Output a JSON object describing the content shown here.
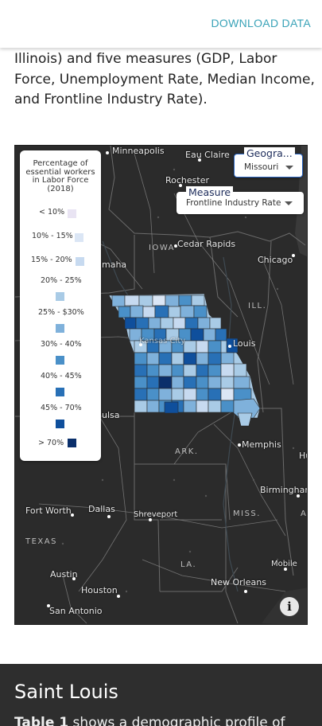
{
  "header": {
    "download_label": "DOWNLOAD DATA"
  },
  "intro": {
    "text": "Illinois) and five measures (GDP, Labor Force, Unemployment Rate, Median Income, and Frontline Industry Rate)."
  },
  "map": {
    "legend": {
      "title": "Percentage of essential workers in Labor Force (2018)",
      "items": [
        {
          "label": "< 10%",
          "color": "#e9e4f3"
        },
        {
          "label": "10% - 15%",
          "color": "#dbe6f5"
        },
        {
          "label": "15% - 20%",
          "color": "#c7daf0"
        },
        {
          "label": "20% - 25%",
          "color": "#a9cbe6"
        },
        {
          "label": "25% - $30%",
          "color": "#7fb1db"
        },
        {
          "label": "30% - 40%",
          "color": "#4a90c8"
        },
        {
          "label": "40% - 45%",
          "color": "#2870b6"
        },
        {
          "label": "45% - 70%",
          "color": "#0f4f9c"
        },
        {
          "label": "> 70%",
          "color": "#0a2f6b"
        }
      ]
    },
    "geography": {
      "caption": "Geogra...",
      "value": "Missouri"
    },
    "measure": {
      "caption": "Measure",
      "value": "Frontline Industry Rate"
    },
    "cities": {
      "minneapolis": "Minneapolis",
      "eau_claire": "Eau Claire",
      "rochester": "Rochester",
      "cedar_rapids": "Cedar Rapids",
      "chicago": "Chicago",
      "omaha": "maha",
      "kansas_city": "Kansas City",
      "st_louis": "Louis",
      "tulsa": "ulsa",
      "memphis": "Memphis",
      "birmingham": "Birmingham",
      "fort_worth": "Fort Worth",
      "dallas": "Dallas",
      "shreveport": "Shreveport",
      "mobile": "Mobile",
      "austin": "Austin",
      "houston": "Houston",
      "new_orleans": "New Orleans",
      "san_antonio": "San Antonio"
    },
    "states": {
      "iowa": "IOWA",
      "ill": "ILL.",
      "ark": "ARK.",
      "miss": "MISS.",
      "ala": "A",
      "texas": "TEXAS",
      "la": "LA.",
      "hu": "Hu"
    },
    "info_label": "i"
  },
  "section": {
    "title": "Saint Louis",
    "lead_bold": "Table 1",
    "lead_rest": " shows a demographic profile of"
  }
}
